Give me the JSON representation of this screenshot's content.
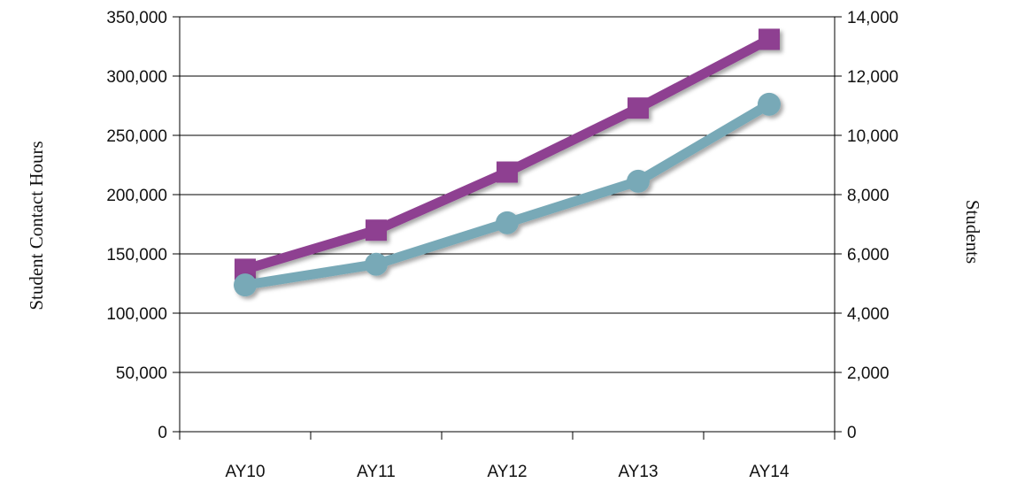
{
  "chart_data": {
    "type": "line",
    "categories": [
      "AY10",
      "AY11",
      "AY12",
      "AY13",
      "AY14"
    ],
    "series": [
      {
        "axis": "left",
        "values": [
          137000,
          170000,
          219000,
          273000,
          331000
        ],
        "marker": "square",
        "color": "#8e3f91"
      },
      {
        "axis": "right",
        "values": [
          4950,
          5650,
          7050,
          8450,
          11050
        ],
        "marker": "circle",
        "color": "#78a9b7"
      }
    ],
    "ylabel_left": "Student Contact Hours",
    "ylabel_right": "Students",
    "ylim_left": [
      0,
      350000
    ],
    "ylim_right": [
      0,
      14000
    ],
    "yticks_left": [
      "0",
      "50,000",
      "100,000",
      "150,000",
      "200,000",
      "250,000",
      "300,000",
      "350,000"
    ],
    "yticks_right": [
      "0",
      "2,000",
      "4,000",
      "6,000",
      "8,000",
      "10,000",
      "12,000",
      "14,000"
    ],
    "grid": true
  }
}
